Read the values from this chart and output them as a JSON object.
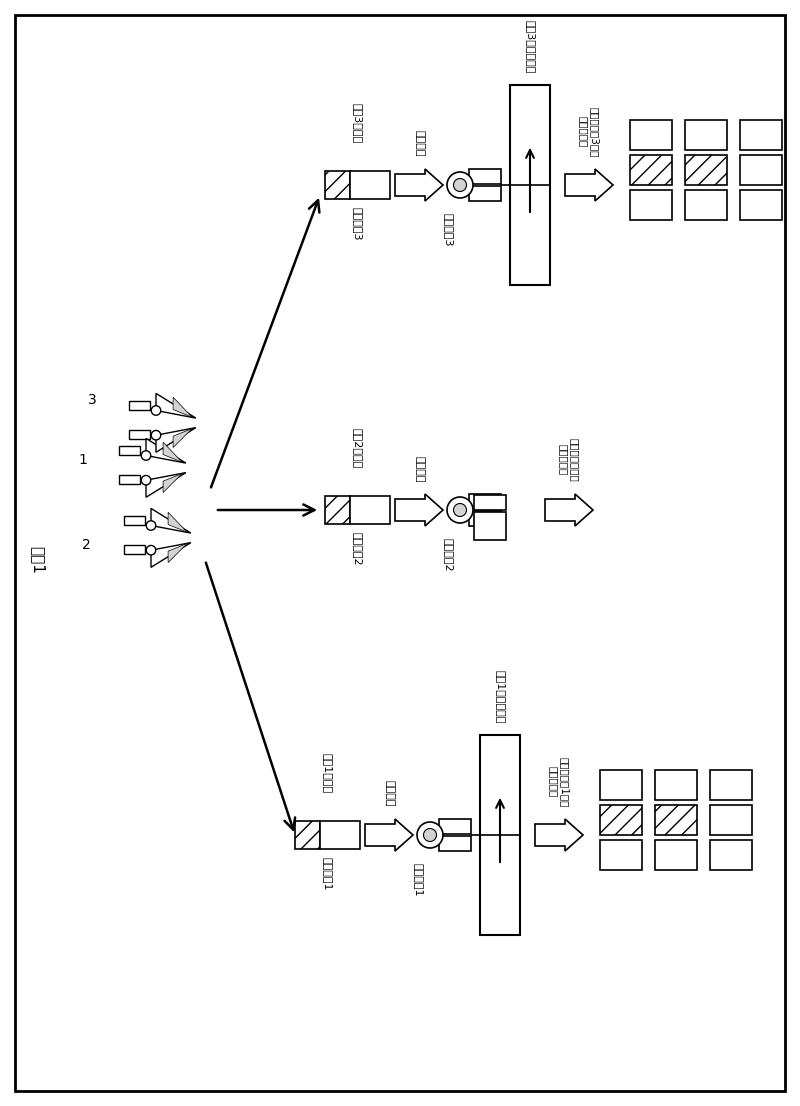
{
  "bg_color": "#ffffff",
  "sample_label": "样本1",
  "num_labels": [
    "1",
    "2",
    "3"
  ],
  "primer_labels": [
    "样本1用引物",
    "样本2用引物",
    "样本3用引物"
  ],
  "tag_seq_labels": [
    "标签序列1",
    "标签序列2",
    "标签序列3"
  ],
  "gene_amp_label": "基因扩增",
  "seq_labels": [
    "标签序列1",
    "标签序列2",
    "标签序列3"
  ],
  "template_labels": [
    "样本1的模板核酸",
    "样本3的模板核酸"
  ],
  "result_label1": "导入了标签1序列\n的扩增产物",
  "result_label2": "不存在模板核酸\n无扩增产物",
  "result_label3": "导入了标签3序列\n的扩增产物"
}
